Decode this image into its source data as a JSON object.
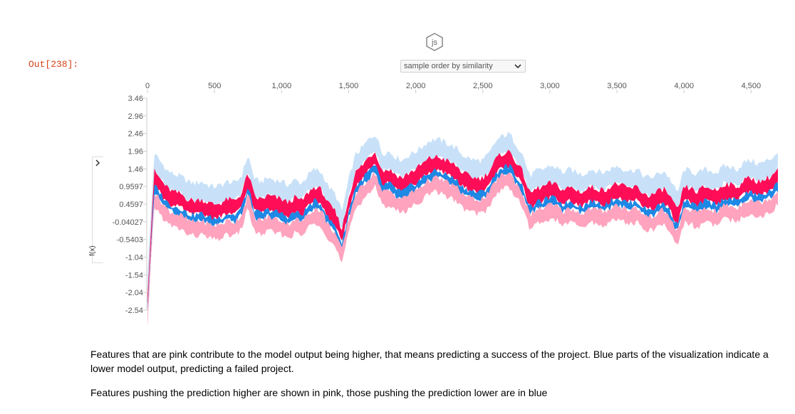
{
  "cell": {
    "out_prompt": "Out[238]:"
  },
  "badge": {
    "label": "js"
  },
  "order_select": {
    "selected": "sample order by similarity"
  },
  "side_panel": {
    "ylabel": "f(x)"
  },
  "colors": {
    "pink_dark": "#ff0d57",
    "pink_light": "#ffa3be",
    "blue_dark": "#1e88e5",
    "blue_light": "#c8e1f8"
  },
  "chart_data": {
    "type": "area",
    "title": "",
    "xlabel": "",
    "ylabel": "f(x)",
    "x_ticks": [
      "0",
      "500",
      "1,000",
      "1,500",
      "2,000",
      "2,500",
      "3,000",
      "3,500",
      "4,000",
      "4,500"
    ],
    "y_ticks": [
      "3.46",
      "2.96",
      "2.46",
      "1.96",
      "1.46",
      "0.9597",
      "0.4597",
      "-0.04027",
      "-0.5403",
      "-1.04",
      "-1.54",
      "-2.04",
      "-2.54"
    ],
    "xlim": [
      0,
      4700
    ],
    "ylim": [
      -2.54,
      3.46
    ],
    "x": [
      0,
      50,
      100,
      150,
      200,
      250,
      300,
      350,
      400,
      450,
      500,
      550,
      600,
      650,
      700,
      750,
      800,
      850,
      900,
      950,
      1000,
      1050,
      1100,
      1150,
      1200,
      1250,
      1300,
      1350,
      1400,
      1450,
      1500,
      1550,
      1600,
      1650,
      1700,
      1750,
      1800,
      1850,
      1900,
      1950,
      2000,
      2050,
      2100,
      2150,
      2200,
      2250,
      2300,
      2350,
      2400,
      2450,
      2500,
      2550,
      2600,
      2650,
      2700,
      2750,
      2800,
      2850,
      2900,
      2950,
      3000,
      3050,
      3100,
      3150,
      3200,
      3250,
      3300,
      3350,
      3400,
      3450,
      3500,
      3550,
      3600,
      3650,
      3700,
      3750,
      3800,
      3850,
      3900,
      3950,
      4000,
      4050,
      4100,
      4150,
      4200,
      4250,
      4300,
      4350,
      4400,
      4450,
      4500,
      4550,
      4600,
      4650,
      4700
    ],
    "series": [
      {
        "name": "",
        "values": [
          -2.1,
          1.35,
          1.1,
          0.85,
          0.75,
          0.7,
          0.55,
          0.5,
          0.55,
          0.45,
          0.4,
          0.45,
          0.55,
          0.5,
          0.7,
          1.3,
          0.6,
          0.55,
          0.65,
          0.6,
          0.55,
          0.45,
          0.6,
          0.5,
          0.75,
          0.9,
          0.8,
          0.4,
          0.2,
          -0.3,
          0.6,
          1.3,
          1.5,
          1.75,
          1.9,
          1.35,
          1.4,
          1.25,
          1.15,
          1.3,
          1.4,
          1.55,
          1.7,
          1.75,
          1.7,
          1.6,
          1.5,
          1.3,
          1.2,
          1.15,
          1.15,
          1.35,
          1.7,
          1.85,
          1.9,
          1.6,
          1.3,
          0.7,
          0.85,
          0.9,
          1.0,
          0.95,
          0.8,
          0.9,
          0.8,
          0.75,
          0.9,
          0.85,
          0.8,
          0.9,
          1.0,
          0.9,
          0.85,
          0.9,
          0.7,
          0.65,
          0.75,
          0.85,
          0.6,
          0.2,
          0.9,
          0.85,
          0.75,
          0.9,
          0.85,
          0.8,
          1.0,
          0.95,
          0.9,
          1.1,
          1.15,
          1.05,
          1.1,
          1.2,
          1.4
        ]
      }
    ],
    "grid": false,
    "legend": "none"
  },
  "text": {
    "para1": "Features that are pink contribute to the model output being higher, that means predicting a success of the project. Blue parts of the visualization indicate a lower model output, predicting a failed project.",
    "para2": "Features pushing the prediction higher are shown in pink, those pushing the prediction lower are in blue"
  }
}
